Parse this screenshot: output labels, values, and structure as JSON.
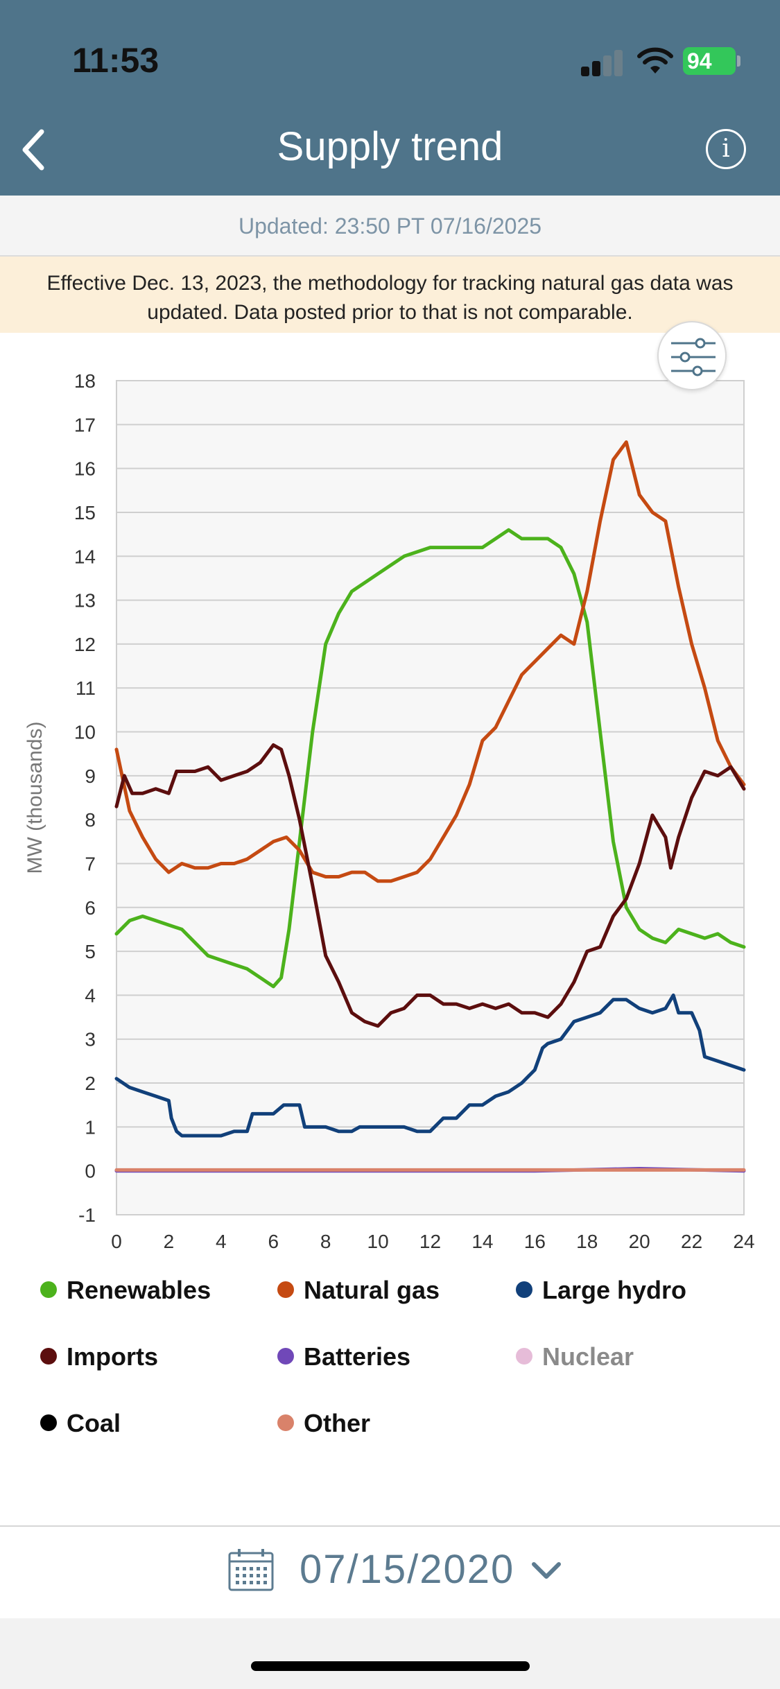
{
  "status_bar": {
    "time": "11:53",
    "battery": "94"
  },
  "header": {
    "title": "Supply trend",
    "back_icon": "chevron-left-icon",
    "info_icon": "info-icon"
  },
  "updated": "Updated: 23:50 PT 07/16/2025",
  "notice": "Effective Dec. 13, 2023, the methodology for tracking natural gas data was updated. Data posted prior to that is not comparable.",
  "legend": [
    {
      "label": "Renewables",
      "color": "#4cb21c",
      "muted": false
    },
    {
      "label": "Natural gas",
      "color": "#c54a12",
      "muted": false
    },
    {
      "label": "Large hydro",
      "color": "#11407a",
      "muted": false
    },
    {
      "label": "Imports",
      "color": "#5c0e0e",
      "muted": false
    },
    {
      "label": "Batteries",
      "color": "#7048b8",
      "muted": false
    },
    {
      "label": "Nuclear",
      "color": "#e6bcd8",
      "muted": true
    },
    {
      "label": "Coal",
      "color": "#000000",
      "muted": false
    },
    {
      "label": "Other",
      "color": "#d9826a",
      "muted": false
    }
  ],
  "date_selector": {
    "value": "07/15/2020",
    "icon": "calendar-icon",
    "chevron": "chevron-down-icon"
  },
  "chart_data": {
    "type": "line",
    "ylabel": "MW (thousands)",
    "xlim": [
      0,
      24
    ],
    "ylim": [
      -1,
      18
    ],
    "x_ticks": [
      "0",
      "2",
      "4",
      "6",
      "8",
      "10",
      "12",
      "14",
      "16",
      "18",
      "20",
      "22",
      "24"
    ],
    "y_ticks": [
      "18",
      "17",
      "16",
      "15",
      "14",
      "13",
      "12",
      "11",
      "10",
      "9",
      "8",
      "7",
      "6",
      "5",
      "4",
      "3",
      "2",
      "1",
      "0",
      "-1"
    ],
    "grid": true,
    "series": [
      {
        "name": "Renewables",
        "color": "#4cb21c",
        "x": [
          0,
          0.5,
          1,
          1.5,
          2,
          2.5,
          3,
          3.5,
          4,
          4.5,
          5,
          5.5,
          6,
          6.3,
          6.6,
          7,
          7.5,
          8,
          8.5,
          9,
          9.5,
          10,
          11,
          12,
          13,
          14,
          14.5,
          15,
          15.5,
          16,
          16.5,
          17,
          17.5,
          18,
          18.5,
          19,
          19.5,
          20,
          20.5,
          21,
          21.5,
          22,
          22.5,
          23,
          23.5,
          24
        ],
        "y": [
          5.4,
          5.7,
          5.8,
          5.7,
          5.6,
          5.5,
          5.2,
          4.9,
          4.8,
          4.7,
          4.6,
          4.4,
          4.2,
          4.4,
          5.5,
          7.5,
          10.0,
          12.0,
          12.7,
          13.2,
          13.4,
          13.6,
          14.0,
          14.2,
          14.2,
          14.2,
          14.4,
          14.6,
          14.4,
          14.4,
          14.4,
          14.2,
          13.6,
          12.5,
          10.0,
          7.5,
          6.0,
          5.5,
          5.3,
          5.2,
          5.5,
          5.4,
          5.3,
          5.4,
          5.2,
          5.1
        ]
      },
      {
        "name": "Natural gas",
        "color": "#c54a12",
        "x": [
          0,
          0.5,
          1,
          1.5,
          2,
          2.5,
          3,
          3.5,
          4,
          4.5,
          5,
          5.5,
          6,
          6.5,
          7,
          7.5,
          8,
          8.5,
          9,
          9.5,
          10,
          10.5,
          11,
          11.5,
          12,
          12.5,
          13,
          13.5,
          14,
          14.5,
          15,
          15.5,
          16,
          16.5,
          17,
          17.5,
          18,
          18.5,
          19,
          19.5,
          20,
          20.5,
          21,
          21.5,
          22,
          22.5,
          23,
          23.5,
          24
        ],
        "y": [
          9.6,
          8.2,
          7.6,
          7.1,
          6.8,
          7.0,
          6.9,
          6.9,
          7.0,
          7.0,
          7.1,
          7.3,
          7.5,
          7.6,
          7.3,
          6.8,
          6.7,
          6.7,
          6.8,
          6.8,
          6.6,
          6.6,
          6.7,
          6.8,
          7.1,
          7.6,
          8.1,
          8.8,
          9.8,
          10.1,
          10.7,
          11.3,
          11.6,
          11.9,
          12.2,
          12.0,
          13.2,
          14.8,
          16.2,
          16.6,
          15.4,
          15.0,
          14.8,
          13.3,
          12.0,
          11.0,
          9.8,
          9.2,
          8.8
        ]
      },
      {
        "name": "Large hydro",
        "color": "#11407a",
        "x": [
          0,
          0.5,
          1,
          1.5,
          2,
          2.1,
          2.3,
          2.5,
          3,
          3.5,
          4,
          4.5,
          5,
          5.2,
          6,
          6.4,
          7,
          7.2,
          8,
          8.5,
          9,
          9.3,
          10,
          11,
          11.5,
          12,
          12.5,
          13,
          13.5,
          14,
          14.5,
          15,
          15.5,
          16,
          16.3,
          16.5,
          17,
          17.5,
          18,
          18.5,
          19,
          19.5,
          20,
          20.5,
          21,
          21.3,
          21.5,
          22,
          22.3,
          22.5,
          23,
          23.5,
          24
        ],
        "y": [
          2.1,
          1.9,
          1.8,
          1.7,
          1.6,
          1.2,
          0.9,
          0.8,
          0.8,
          0.8,
          0.8,
          0.9,
          0.9,
          1.3,
          1.3,
          1.5,
          1.5,
          1.0,
          1.0,
          0.9,
          0.9,
          1.0,
          1.0,
          1.0,
          0.9,
          0.9,
          1.2,
          1.2,
          1.5,
          1.5,
          1.7,
          1.8,
          2.0,
          2.3,
          2.8,
          2.9,
          3.0,
          3.4,
          3.5,
          3.6,
          3.9,
          3.9,
          3.7,
          3.6,
          3.7,
          4.0,
          3.6,
          3.6,
          3.2,
          2.6,
          2.5,
          2.4,
          2.3
        ]
      },
      {
        "name": "Imports",
        "color": "#5c0e0e",
        "x": [
          0,
          0.3,
          0.6,
          1,
          1.5,
          2,
          2.3,
          2.6,
          3,
          3.5,
          4,
          4.5,
          5,
          5.5,
          6,
          6.3,
          6.6,
          7,
          7.5,
          8,
          8.5,
          9,
          9.5,
          10,
          10.5,
          11,
          11.5,
          12,
          12.5,
          13,
          13.5,
          14,
          14.5,
          15,
          15.5,
          16,
          16.5,
          17,
          17.5,
          18,
          18.5,
          19,
          19.5,
          20,
          20.5,
          21,
          21.2,
          21.5,
          22,
          22.5,
          23,
          23.5,
          24
        ],
        "y": [
          8.3,
          9.0,
          8.6,
          8.6,
          8.7,
          8.6,
          9.1,
          9.1,
          9.1,
          9.2,
          8.9,
          9.0,
          9.1,
          9.3,
          9.7,
          9.6,
          9.0,
          8.0,
          6.5,
          4.9,
          4.3,
          3.6,
          3.4,
          3.3,
          3.6,
          3.7,
          4.0,
          4.0,
          3.8,
          3.8,
          3.7,
          3.8,
          3.7,
          3.8,
          3.6,
          3.6,
          3.5,
          3.8,
          4.3,
          5.0,
          5.1,
          5.8,
          6.2,
          7.0,
          8.1,
          7.6,
          6.9,
          7.6,
          8.5,
          9.1,
          9.0,
          9.2,
          8.7
        ]
      },
      {
        "name": "Batteries",
        "color": "#7048b8",
        "x": [
          0,
          4,
          8,
          12,
          16,
          20,
          24
        ],
        "y": [
          0.0,
          0.0,
          0.0,
          0.0,
          0.0,
          0.05,
          0.0
        ]
      },
      {
        "name": "Nuclear",
        "color": "#e6bcd8",
        "x": [],
        "y": []
      },
      {
        "name": "Coal",
        "color": "#000000",
        "x": [],
        "y": []
      },
      {
        "name": "Other",
        "color": "#d9826a",
        "x": [
          0,
          4,
          8,
          12,
          16,
          20,
          24
        ],
        "y": [
          0.02,
          0.02,
          0.02,
          0.02,
          0.02,
          0.02,
          0.02
        ]
      }
    ]
  }
}
